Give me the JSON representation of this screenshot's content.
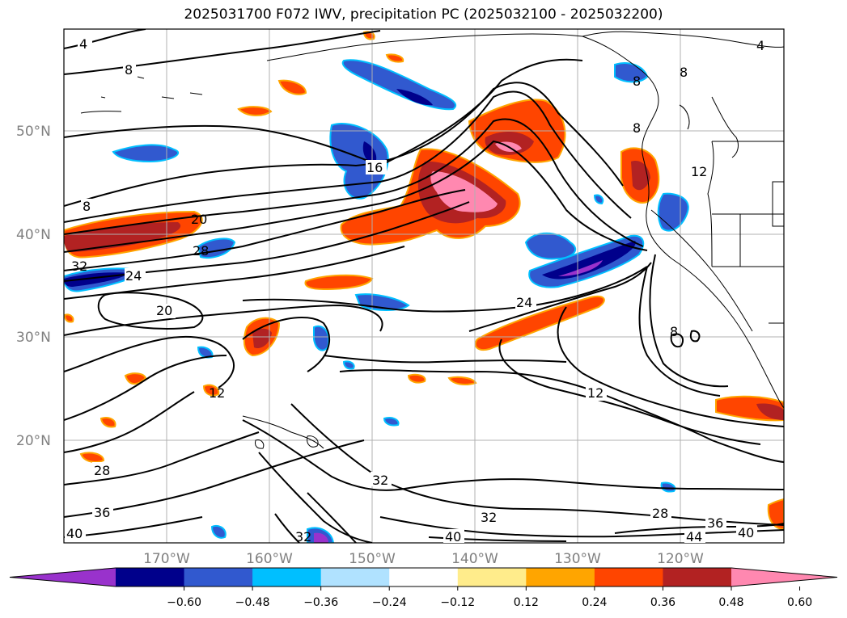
{
  "title": "2025031700 F072 IWV, precipitation PC (2025032100 - 2025032200)",
  "lat_labels": [
    "50°N",
    "40°N",
    "30°N",
    "20°N"
  ],
  "lon_labels": [
    "170°W",
    "160°W",
    "150°W",
    "140°W",
    "130°W",
    "120°W"
  ],
  "contour_labels": [
    {
      "text": "4"
    },
    {
      "text": "8"
    },
    {
      "text": "8"
    },
    {
      "text": "16"
    },
    {
      "text": "20"
    },
    {
      "text": "28"
    },
    {
      "text": "24"
    },
    {
      "text": "20"
    },
    {
      "text": "24"
    },
    {
      "text": "12"
    },
    {
      "text": "8"
    },
    {
      "text": "8"
    },
    {
      "text": "8"
    },
    {
      "text": "12"
    },
    {
      "text": "8"
    },
    {
      "text": "28"
    },
    {
      "text": "32"
    },
    {
      "text": "32"
    },
    {
      "text": "36"
    },
    {
      "text": "40"
    },
    {
      "text": "40"
    },
    {
      "text": "32"
    },
    {
      "text": "28"
    },
    {
      "text": "36"
    },
    {
      "text": "44"
    },
    {
      "text": "40"
    },
    {
      "text": "12"
    },
    {
      "text": "4"
    },
    {
      "text": "32"
    }
  ],
  "colorbar": {
    "colors": [
      "#9932cc",
      "#00008b",
      "#3159cf",
      "#00bfff",
      "#b0e2ff",
      "#ffffff",
      "#ffec8b",
      "#ffa500",
      "#ff4500",
      "#b22222",
      "#ff88b0"
    ],
    "ticks": [
      "−0.60",
      "−0.48",
      "−0.36",
      "−0.24",
      "−0.12",
      "0.12",
      "0.24",
      "0.36",
      "0.48",
      "0.60"
    ]
  }
}
